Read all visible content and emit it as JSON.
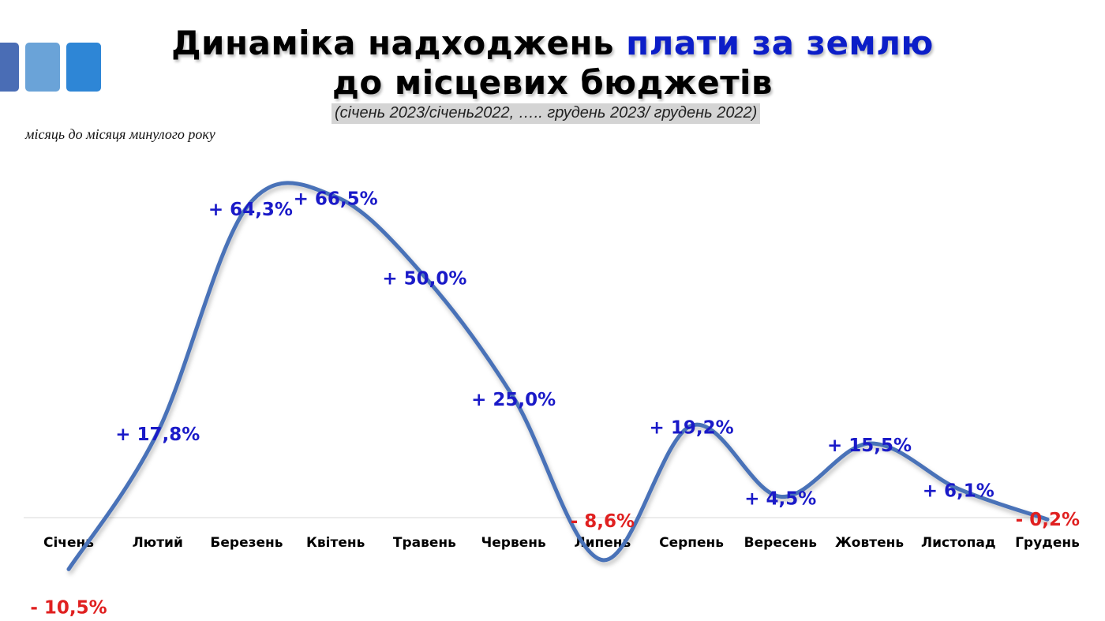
{
  "header": {
    "title_part1": "Динаміка надходжень ",
    "title_accent": "плати за землю",
    "title_line2": "до місцевих бюджетів",
    "subtitle": "(січень 2023/січень2022, ….. грудень 2023/ грудень 2022)",
    "caption": "місяць до місяця минулого року"
  },
  "colors": {
    "accent": "#0c1ec8",
    "line": "#4a72b8",
    "positive_label": "#1a1ac8",
    "negative_label": "#e02020"
  },
  "chart_data": {
    "type": "line",
    "title": "Динаміка надходжень плати за землю до місцевих бюджетів",
    "subtitle": "(січень 2023/січень2022, ….. грудень 2023/ грудень 2022)",
    "xlabel": "",
    "ylabel": "місяць до місяця минулого року",
    "categories": [
      "Січень",
      "Лютий",
      "Березень",
      "Квітень",
      "Травень",
      "Червень",
      "Липень",
      "Серпень",
      "Вересень",
      "Жовтень",
      "Листопад",
      "Грудень"
    ],
    "series": [
      {
        "values": [
          -10.5,
          17.8,
          64.3,
          66.5,
          50.0,
          25.0,
          -8.6,
          19.2,
          4.5,
          15.5,
          6.1,
          -0.2
        ],
        "labels": [
          "- 10,5%",
          "+ 17,8%",
          "+ 64,3%",
          "+ 66,5%",
          "+ 50,0%",
          "+ 25,0%",
          "- 8,6%",
          "+ 19,2%",
          "+ 4,5%",
          "+ 15,5%",
          "+ 6,1%",
          "- 0,2%"
        ]
      }
    ],
    "grid": false,
    "legend": "none"
  }
}
